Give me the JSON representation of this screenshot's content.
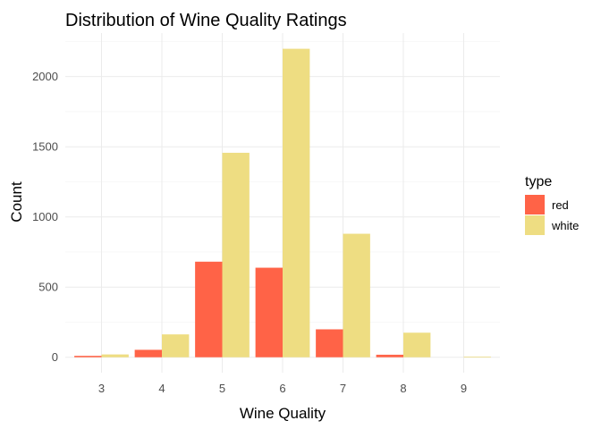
{
  "chart_data": {
    "type": "bar",
    "title": "Distribution of Wine Quality Ratings",
    "xlabel": "Wine Quality",
    "ylabel": "Count",
    "categories": [
      "3",
      "4",
      "5",
      "6",
      "7",
      "8",
      "9"
    ],
    "series": [
      {
        "name": "red",
        "color": "#ff6347",
        "values": [
          10,
          53,
          681,
          638,
          199,
          18,
          0
        ]
      },
      {
        "name": "white",
        "color": "#eedd82",
        "values": [
          20,
          163,
          1457,
          2198,
          880,
          175,
          5
        ]
      }
    ],
    "yticks": [
      0,
      500,
      1000,
      1500,
      2000
    ],
    "ylim": [
      -110,
      2310
    ],
    "grid": true,
    "legend": {
      "title": "type",
      "position": "right"
    }
  }
}
